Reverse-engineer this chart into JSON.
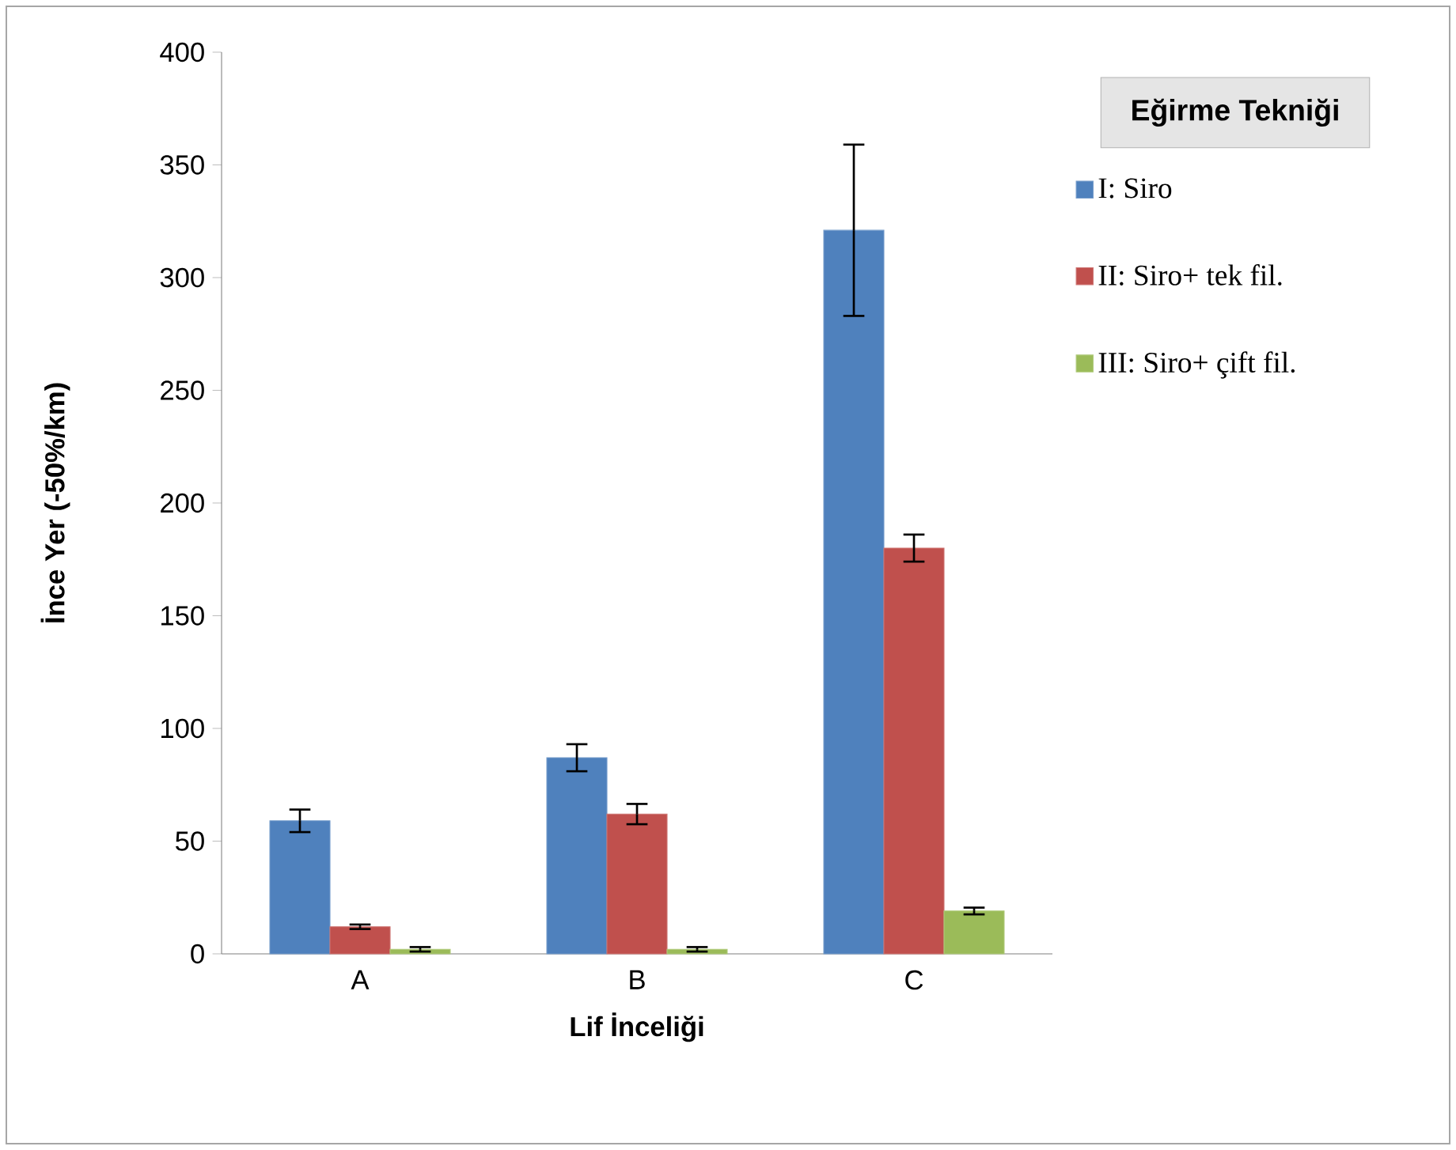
{
  "chart_data": {
    "type": "bar",
    "xlabel": "Lif İnceliği",
    "ylabel": "İnce Yer (-50%/km)",
    "legend_title": "Eğirme Tekniği",
    "legend": "right",
    "grid": false,
    "categories": [
      "A",
      "B",
      "C"
    ],
    "ylim": [
      0,
      400
    ],
    "yticks": [
      0,
      50,
      100,
      150,
      200,
      250,
      300,
      350,
      400
    ],
    "series": [
      {
        "name": "I: Siro",
        "color": "#4f81bd",
        "values": [
          59,
          87,
          321
        ],
        "errors": [
          5,
          6,
          38
        ]
      },
      {
        "name": "II: Siro+ tek fil.",
        "color": "#c0504d",
        "values": [
          12,
          62,
          180
        ],
        "errors": [
          1,
          4.5,
          6
        ]
      },
      {
        "name": "III: Siro+ çift fil.",
        "color": "#9bbb59",
        "values": [
          2,
          2,
          19
        ],
        "errors": [
          1,
          1,
          1.5
        ]
      }
    ]
  }
}
